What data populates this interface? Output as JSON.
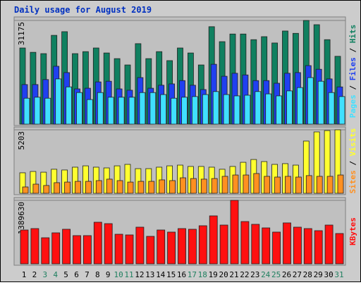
{
  "chart_data": [
    {
      "type": "bar",
      "title": "Daily usage for August 2019",
      "ylim": [
        0,
        31175
      ],
      "yticks": [
        31175
      ],
      "grid": true,
      "legend_separator": " / ",
      "series": [
        {
          "name": "Hits",
          "color": "#108060",
          "values": [
            22900,
            21600,
            21200,
            26700,
            27800,
            21200,
            21800,
            22900,
            21400,
            19700,
            17800,
            24200,
            19700,
            21800,
            19100,
            22900,
            21400,
            17800,
            29300,
            24800,
            27100,
            27100,
            25400,
            26300,
            24400,
            28000,
            27300,
            31175,
            29900,
            25400,
            20400
          ]
        },
        {
          "name": "Files",
          "color": "#2040f0",
          "values": [
            11900,
            11900,
            13400,
            17400,
            15500,
            10600,
            10800,
            12700,
            12900,
            10600,
            10200,
            14000,
            10800,
            11700,
            12100,
            13100,
            11700,
            10400,
            18000,
            14400,
            15300,
            14800,
            13100,
            13100,
            12300,
            15300,
            15500,
            17600,
            16500,
            13600,
            11200
          ]
        },
        {
          "name": "Pages",
          "color": "#40e0ff",
          "values": [
            7800,
            8100,
            7800,
            13600,
            11200,
            9500,
            7400,
            9500,
            8100,
            8100,
            8100,
            9500,
            9500,
            8900,
            7800,
            8100,
            8300,
            8900,
            9800,
            8900,
            8500,
            8700,
            9800,
            9100,
            8500,
            10000,
            11000,
            14000,
            12900,
            9500,
            8300
          ]
        }
      ]
    },
    {
      "type": "bar",
      "ylim": [
        0,
        5203
      ],
      "yticks": [
        5203
      ],
      "grid": true,
      "legend_separator": " / ",
      "series": [
        {
          "name": "Visits",
          "color": "#ffff30",
          "values": [
            1680,
            1790,
            1730,
            1970,
            1910,
            2140,
            2250,
            2140,
            2080,
            2250,
            2370,
            2020,
            2020,
            2140,
            2250,
            2310,
            2200,
            2200,
            2140,
            1970,
            2200,
            2540,
            2770,
            2600,
            2370,
            2430,
            2310,
            4280,
            5030,
            5140,
            5203
          ]
        },
        {
          "name": "Sites",
          "color": "#ff9020",
          "values": [
            520,
            750,
            640,
            870,
            920,
            980,
            980,
            1040,
            1160,
            1040,
            920,
            980,
            980,
            1100,
            1040,
            1270,
            1210,
            1160,
            1210,
            1390,
            1500,
            1500,
            1620,
            1390,
            1330,
            1390,
            1330,
            1450,
            1390,
            1390,
            1500
          ]
        }
      ]
    },
    {
      "type": "bar",
      "ylim": [
        0,
        1389630
      ],
      "yticks": [
        1389630
      ],
      "grid": true,
      "categories": [
        "1",
        "2",
        "3",
        "4",
        "5",
        "6",
        "7",
        "8",
        "9",
        "10",
        "11",
        "12",
        "13",
        "14",
        "15",
        "16",
        "17",
        "18",
        "19",
        "20",
        "21",
        "22",
        "23",
        "24",
        "25",
        "26",
        "27",
        "28",
        "29",
        "30",
        "31"
      ],
      "category_colors": [
        "#000",
        "#000",
        "#208060",
        "#208060",
        "#000",
        "#000",
        "#000",
        "#000",
        "#000",
        "#208060",
        "#208060",
        "#000",
        "#000",
        "#000",
        "#000",
        "#000",
        "#208060",
        "#208060",
        "#000",
        "#000",
        "#000",
        "#000",
        "#000",
        "#208060",
        "#208060",
        "#000",
        "#000",
        "#000",
        "#000",
        "#000",
        "#208060"
      ],
      "series": [
        {
          "name": "KBytes",
          "color": "#ff1010",
          "values": [
            741000,
            772000,
            571000,
            679000,
            757000,
            618000,
            618000,
            911000,
            880000,
            648000,
            633000,
            803000,
            602000,
            741000,
            695000,
            772000,
            757000,
            834000,
            1050000,
            849000,
            1389630,
            926000,
            865000,
            787000,
            695000,
            896000,
            803000,
            772000,
            726000,
            849000,
            664000
          ]
        }
      ]
    }
  ]
}
